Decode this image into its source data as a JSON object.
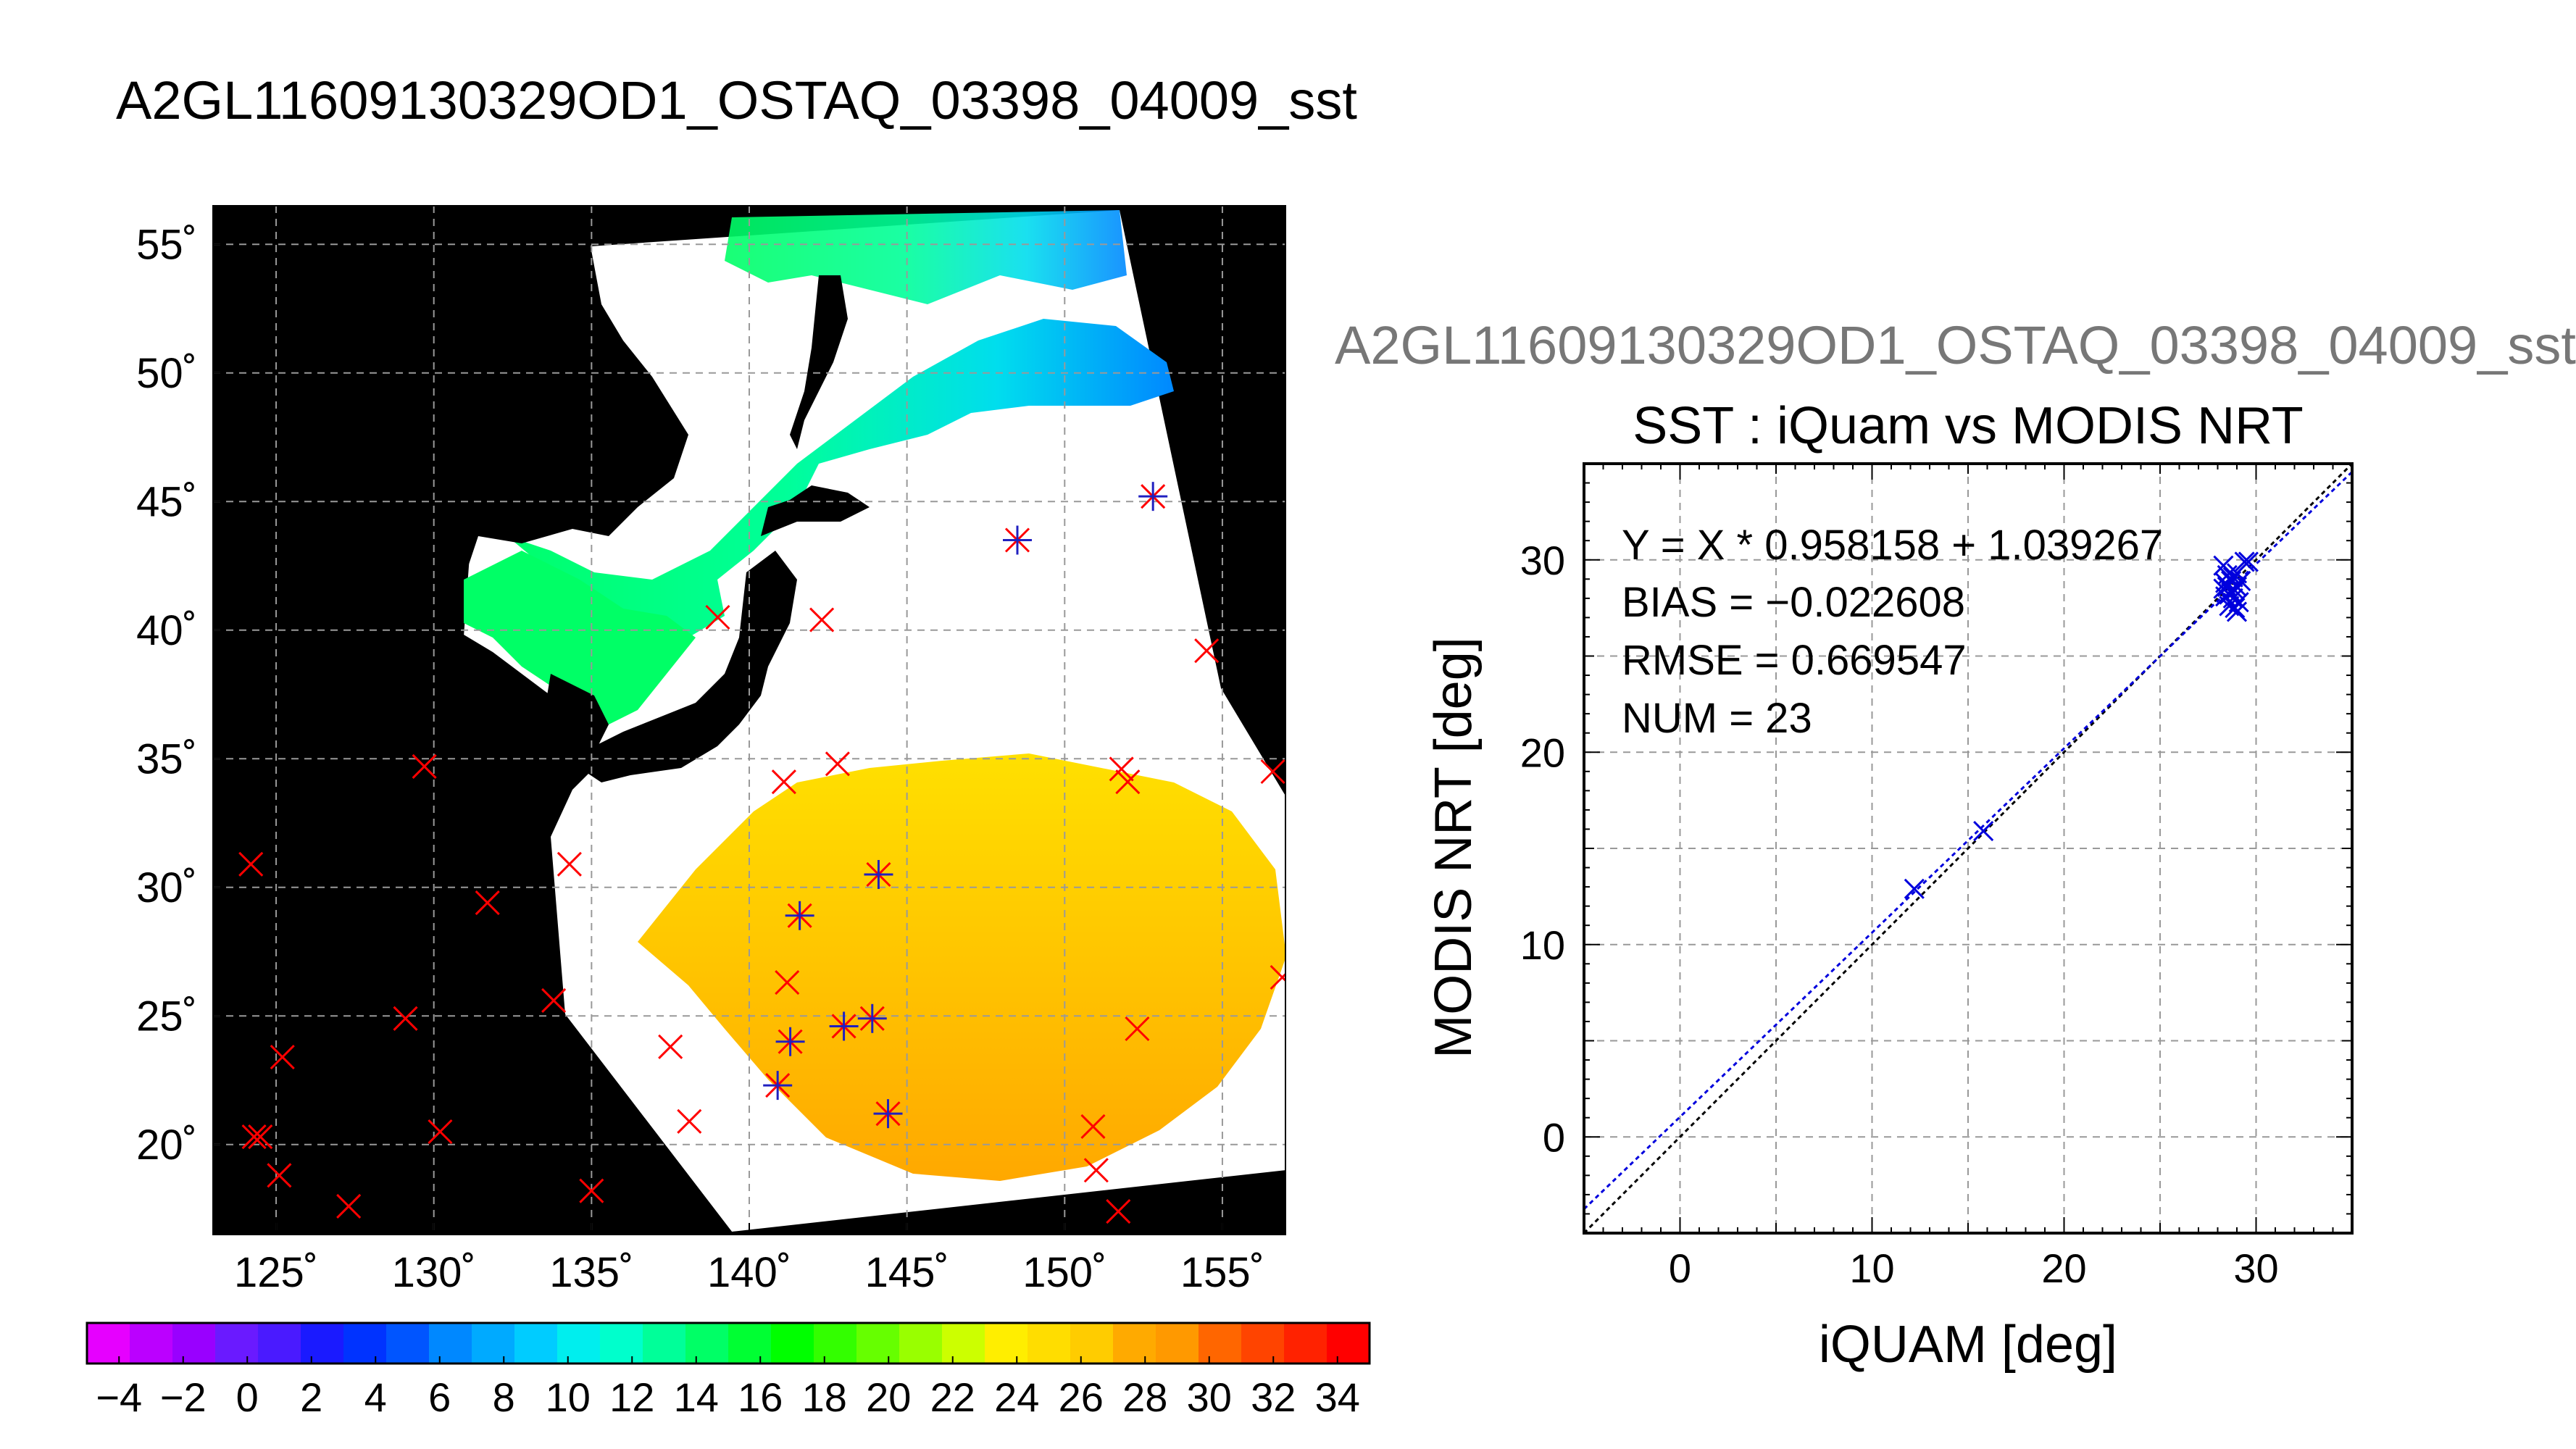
{
  "main_title": "A2GL11609130329OD1_OSTAQ_03398_04009_sst",
  "map": {
    "lon_ticks": [
      "125˚",
      "130˚",
      "135˚",
      "140˚",
      "145˚",
      "150˚",
      "155˚"
    ],
    "lat_ticks": [
      "55˚",
      "50˚",
      "45˚",
      "40˚",
      "35˚",
      "30˚",
      "25˚",
      "20˚"
    ],
    "lon_range": [
      123,
      157
    ],
    "lat_range": [
      16.5,
      56.5
    ],
    "colors": {
      "background": "#000000",
      "land": "#000000",
      "cloud": "#ffffff",
      "grid": "#999999",
      "marker_red": "#ff0000",
      "marker_blue": "#2020c0"
    },
    "red_markers": [
      [
        124.2,
        30.9
      ],
      [
        124.3,
        20.3
      ],
      [
        124.5,
        20.3
      ],
      [
        125.2,
        23.4
      ],
      [
        125.1,
        18.8
      ],
      [
        127.3,
        17.6
      ],
      [
        129.1,
        24.9
      ],
      [
        129.7,
        34.7
      ],
      [
        130.2,
        20.5
      ],
      [
        131.7,
        29.4
      ],
      [
        133.8,
        25.6
      ],
      [
        134.3,
        30.9
      ],
      [
        135.0,
        18.2
      ],
      [
        137.5,
        23.8
      ],
      [
        138.1,
        20.9
      ],
      [
        139.0,
        40.5
      ],
      [
        141.1,
        34.1
      ],
      [
        141.2,
        26.3
      ],
      [
        142.3,
        40.4
      ],
      [
        142.8,
        34.8
      ],
      [
        150.9,
        20.7
      ],
      [
        151.0,
        19.0
      ],
      [
        151.7,
        17.4
      ],
      [
        151.8,
        34.6
      ],
      [
        152.0,
        34.1
      ],
      [
        152.3,
        24.5
      ],
      [
        154.5,
        39.2
      ],
      [
        156.6,
        34.5
      ],
      [
        156.9,
        26.5
      ]
    ],
    "blue_markers": [
      [
        140.9,
        22.3
      ],
      [
        141.3,
        24.0
      ],
      [
        141.6,
        28.9
      ],
      [
        143.0,
        24.6
      ],
      [
        143.9,
        24.9
      ],
      [
        144.1,
        30.5
      ],
      [
        144.4,
        21.2
      ],
      [
        148.5,
        43.5
      ],
      [
        152.8,
        45.2
      ]
    ]
  },
  "colorbar": {
    "tick_labels": [
      "−4",
      "−2",
      "0",
      "2",
      "4",
      "6",
      "8",
      "10",
      "12",
      "14",
      "16",
      "18",
      "20",
      "22",
      "24",
      "26",
      "28",
      "30",
      "32",
      "34"
    ],
    "range": [
      -5,
      35
    ],
    "colors": [
      "#e600ff",
      "#bb00ff",
      "#9900ff",
      "#6a1aff",
      "#4a1aff",
      "#1a1aff",
      "#0033ff",
      "#0055ff",
      "#0088ff",
      "#00aaff",
      "#00ccff",
      "#00eeee",
      "#00ffcc",
      "#00ff99",
      "#00ff66",
      "#00ff33",
      "#00ff00",
      "#33ff00",
      "#66ff00",
      "#99ff00",
      "#ccff00",
      "#ffee00",
      "#ffdd00",
      "#ffcc00",
      "#ffaa00",
      "#ff9900",
      "#ff6600",
      "#ff4400",
      "#ff2200",
      "#ff0000"
    ]
  },
  "scatter": {
    "overflow_title": "A2GL11609130329OD1_OSTAQ_03398_04009_sst",
    "title": "SST : iQuam vs MODIS NRT",
    "equation": "Y = X * 0.958158 + 1.039267",
    "bias": "BIAS = −0.022608",
    "rmse": "RMSE = 0.669547",
    "num": "NUM = 23",
    "xlabel": "iQUAM [deg]",
    "ylabel": "MODIS NRT [deg]",
    "x_tick_labels": [
      "0",
      "10",
      "20",
      "30"
    ],
    "y_tick_labels": [
      "0",
      "10",
      "20",
      "30"
    ]
  },
  "chart_data": [
    {
      "type": "scatter",
      "title": "SST : iQuam vs MODIS NRT",
      "xlabel": "iQUAM [deg]",
      "ylabel": "MODIS NRT [deg]",
      "xlim": [
        -5,
        35
      ],
      "ylim": [
        -5,
        35
      ],
      "grid": true,
      "x_ticks": [
        0,
        10,
        20,
        30
      ],
      "y_ticks": [
        0,
        10,
        20,
        30
      ],
      "regression": {
        "slope": 0.958158,
        "intercept": 1.039267,
        "bias": -0.022608,
        "rmse": 0.669547,
        "num": 23
      },
      "lines": [
        {
          "kind": "fit",
          "slope": 0.958158,
          "intercept": 1.039267,
          "color": "#0000dd"
        },
        {
          "kind": "identity",
          "slope": 1,
          "intercept": 0,
          "color": "#000000"
        }
      ],
      "points": [
        {
          "x": 12.2,
          "y": 12.9
        },
        {
          "x": 15.8,
          "y": 15.9
        },
        {
          "x": 28.3,
          "y": 29.7
        },
        {
          "x": 28.3,
          "y": 28.5
        },
        {
          "x": 28.4,
          "y": 28.1
        },
        {
          "x": 28.5,
          "y": 29.2
        },
        {
          "x": 28.6,
          "y": 28.2
        },
        {
          "x": 28.6,
          "y": 27.6
        },
        {
          "x": 28.7,
          "y": 28.9
        },
        {
          "x": 28.8,
          "y": 29.1
        },
        {
          "x": 28.8,
          "y": 28.0
        },
        {
          "x": 28.9,
          "y": 28.4
        },
        {
          "x": 28.9,
          "y": 27.5
        },
        {
          "x": 29.0,
          "y": 29.3
        },
        {
          "x": 29.0,
          "y": 28.6
        },
        {
          "x": 29.1,
          "y": 27.8
        },
        {
          "x": 29.2,
          "y": 28.9
        },
        {
          "x": 29.4,
          "y": 29.9
        },
        {
          "x": 28.4,
          "y": 28.8
        },
        {
          "x": 28.7,
          "y": 28.3
        },
        {
          "x": 29.0,
          "y": 27.3
        },
        {
          "x": 28.5,
          "y": 28.6
        },
        {
          "x": 29.6,
          "y": 29.9
        }
      ]
    }
  ]
}
